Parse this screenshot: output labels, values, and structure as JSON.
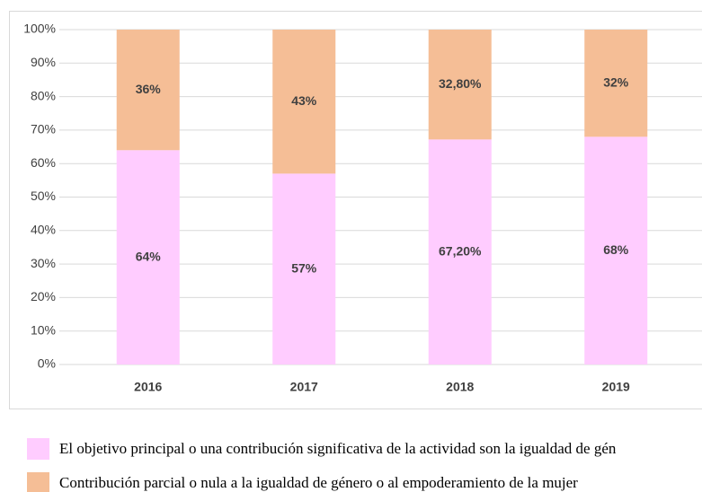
{
  "chart_data": {
    "type": "stacked_bar",
    "categories": [
      "2016",
      "2017",
      "2018",
      "2019"
    ],
    "series": [
      {
        "name": "El objetivo principal o una contribución significativa de la actividad son la igualdad de gén",
        "color": "#ffccff",
        "values": [
          64,
          57,
          67.2,
          68
        ],
        "value_labels": [
          "64%",
          "57%",
          "67,20%",
          "68%"
        ]
      },
      {
        "name": "Contribución parcial o nula a la igualdad de género o al empoderamiento de la mujer",
        "color": "#f5be96",
        "values": [
          36,
          43,
          32.8,
          32
        ],
        "value_labels": [
          "36%",
          "43%",
          "32,80%",
          "32%"
        ]
      }
    ],
    "ylim": [
      0,
      100
    ],
    "yticks": [
      {
        "value": 0,
        "label": "0%"
      },
      {
        "value": 10,
        "label": "10%"
      },
      {
        "value": 20,
        "label": "20%"
      },
      {
        "value": 30,
        "label": "30%"
      },
      {
        "value": 40,
        "label": "40%"
      },
      {
        "value": 50,
        "label": "50%"
      },
      {
        "value": 60,
        "label": "60%"
      },
      {
        "value": 70,
        "label": "70%"
      },
      {
        "value": 80,
        "label": "80%"
      },
      {
        "value": 90,
        "label": "90%"
      },
      {
        "value": 100,
        "label": "100%"
      }
    ],
    "grid": true,
    "legend": "bottom"
  }
}
